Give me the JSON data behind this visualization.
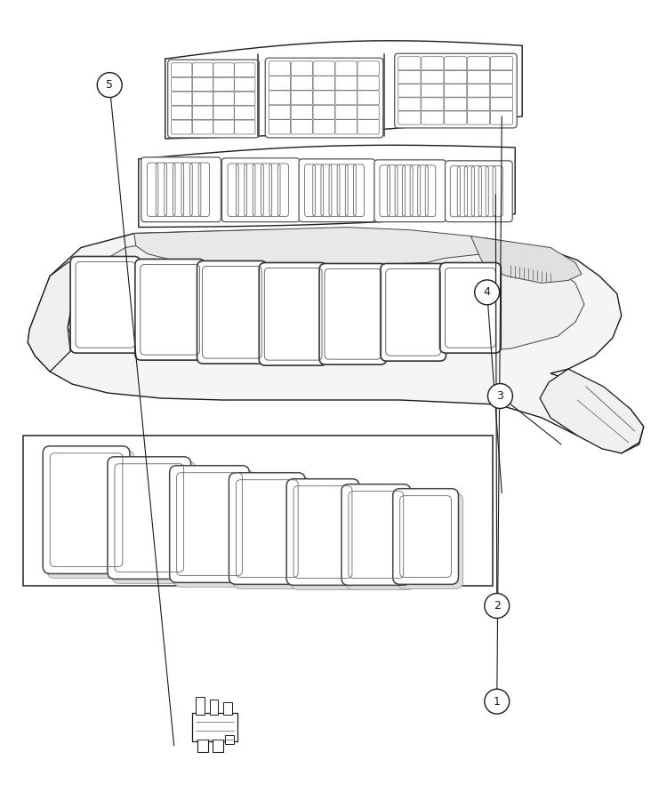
{
  "background_color": "#ffffff",
  "line_color": "#1a1a1a",
  "fig_width": 7.41,
  "fig_height": 9.0,
  "parts": {
    "part1": {
      "label": "1",
      "callout_circle": [
        0.755,
        0.878
      ],
      "callout_line": [
        [
          0.7,
          0.878
        ],
        [
          0.628,
          0.868
        ]
      ]
    },
    "part2": {
      "label": "2",
      "callout_circle": [
        0.755,
        0.758
      ],
      "callout_line": [
        [
          0.7,
          0.758
        ],
        [
          0.628,
          0.752
        ]
      ]
    },
    "part3": {
      "label": "3",
      "callout_circle": [
        0.76,
        0.495
      ],
      "callout_line": [
        [
          0.705,
          0.495
        ],
        [
          0.66,
          0.49
        ]
      ]
    },
    "part4": {
      "label": "4",
      "callout_circle": [
        0.74,
        0.365
      ],
      "callout_line": [
        [
          0.685,
          0.365
        ],
        [
          0.65,
          0.365
        ]
      ]
    },
    "part5": {
      "label": "5",
      "callout_circle": [
        0.165,
        0.105
      ],
      "callout_line": [
        [
          0.22,
          0.105
        ],
        [
          0.255,
          0.112
        ]
      ]
    }
  }
}
